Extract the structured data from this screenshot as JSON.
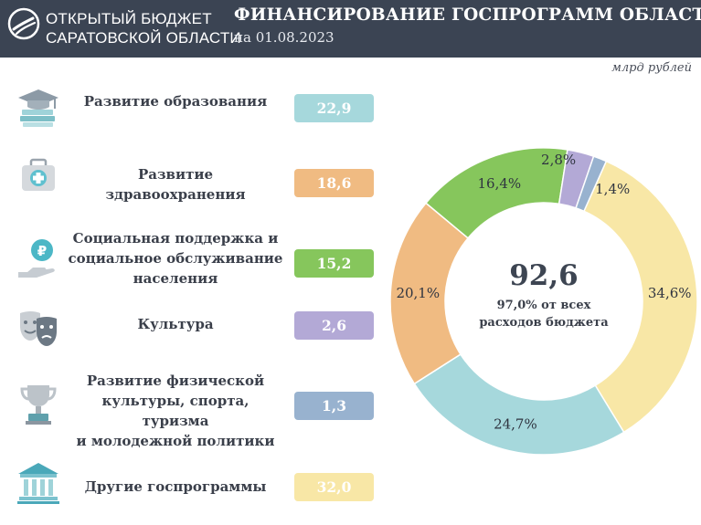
{
  "header": {
    "org_line1": "ОТКРЫТЫЙ БЮДЖЕТ",
    "org_line2": "САРАТОВСКОЙ ОБЛАСТИ",
    "title": "ФИНАНСИРОВАНИЕ ГОСПРОГРАММ ОБЛАСТИ",
    "subtitle": "на 01.08.2023",
    "units": "млрд рублей"
  },
  "colors": {
    "header_bg": "#3b4453",
    "education": "#a6d8dc",
    "health": "#f0bb82",
    "social": "#86c65c",
    "culture": "#b3a9d6",
    "sport": "#98b2cf",
    "other": "#f8e7a6"
  },
  "programs": [
    {
      "lines": [
        "Развитие образования"
      ],
      "value": "22,9",
      "icon": "graduation-cap-books-icon",
      "color": "#a6d8dc"
    },
    {
      "lines": [
        "Развитие здравоохранения"
      ],
      "value": "18,6",
      "icon": "medical-kit-icon",
      "color": "#f0bb82"
    },
    {
      "lines": [
        "Социальная поддержка и",
        "социальное обслуживание",
        "населения"
      ],
      "value": "15,2",
      "icon": "ruble-hand-icon",
      "color": "#86c65c"
    },
    {
      "lines": [
        "Культура"
      ],
      "value": "2,6",
      "icon": "theater-masks-icon",
      "color": "#b3a9d6"
    },
    {
      "lines": [
        "Развитие физической",
        "культуры, спорта, туризма",
        "и молодежной политики"
      ],
      "value": "1,3",
      "icon": "trophy-cup-icon",
      "color": "#98b2cf"
    },
    {
      "lines": [
        "Другие госпрограммы"
      ],
      "value": "32,0",
      "icon": "government-building-icon",
      "color": "#f8e7a6"
    }
  ],
  "chart_data": {
    "type": "pie",
    "variant": "donut",
    "center_value": "92,6",
    "center_note_line1": "97,0% от всех",
    "center_note_line2": "расходов бюджета",
    "slices": [
      {
        "label": "34,6%",
        "value": 34.6,
        "color": "#f8e7a6"
      },
      {
        "label": "24,7%",
        "value": 24.7,
        "color": "#a6d8dc"
      },
      {
        "label": "20,1%",
        "value": 20.1,
        "color": "#f0bb82"
      },
      {
        "label": "16,4%",
        "value": 16.4,
        "color": "#86c65c"
      },
      {
        "label": "2,8%",
        "value": 2.8,
        "color": "#b3a9d6"
      },
      {
        "label": "1,4%",
        "value": 1.4,
        "color": "#98b2cf"
      }
    ]
  }
}
